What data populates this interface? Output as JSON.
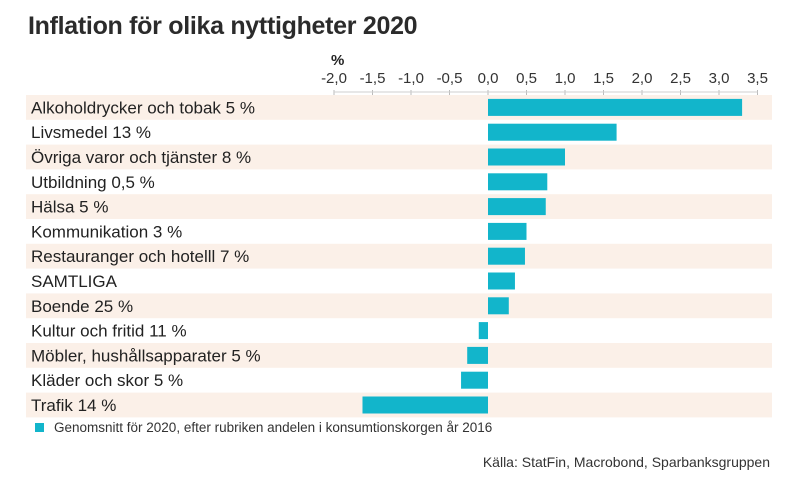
{
  "chart_data": {
    "type": "bar",
    "orientation": "horizontal",
    "title": "Inflation för olika nyttigheter 2020",
    "unit_label": "%",
    "xlim": [
      -2.0,
      3.5
    ],
    "xticks": [
      -2.0,
      -1.5,
      -1.0,
      -0.5,
      0.0,
      0.5,
      1.0,
      1.5,
      2.0,
      2.5,
      3.0,
      3.5
    ],
    "xtick_labels": [
      "-2,0",
      "-1,5",
      "-1,0",
      "-0,5",
      "0,0",
      "0,5",
      "1,0",
      "1,5",
      "2,0",
      "2,5",
      "3,0",
      "3,5"
    ],
    "categories": [
      "Alkoholdrycker och tobak 5 %",
      "Livsmedel 13 %",
      "Övriga varor och tjänster 8 %",
      "Utbildning 0,5 %",
      "Hälsa 5 %",
      "Kommunikation 3 %",
      "Restauranger och hotelll 7 %",
      "SAMTLIGA",
      "Boende 25 %",
      "Kultur och fritid 11 %",
      "Möbler, hushållsapparater 5 %",
      "Kläder och skor 5 %",
      "Trafik 14 %"
    ],
    "values": [
      3.3,
      1.67,
      1.0,
      0.77,
      0.75,
      0.5,
      0.48,
      0.35,
      0.27,
      -0.12,
      -0.27,
      -0.35,
      -1.63
    ],
    "series_name": "Genomsnitt för 2020, efter rubriken andelen i konsumtionskorgen år 2016",
    "source": "Källa: StatFin, Macrobond, Sparbanksgruppen",
    "colors": {
      "bar": "#12b5cb",
      "band": "#fbf0e8"
    }
  }
}
